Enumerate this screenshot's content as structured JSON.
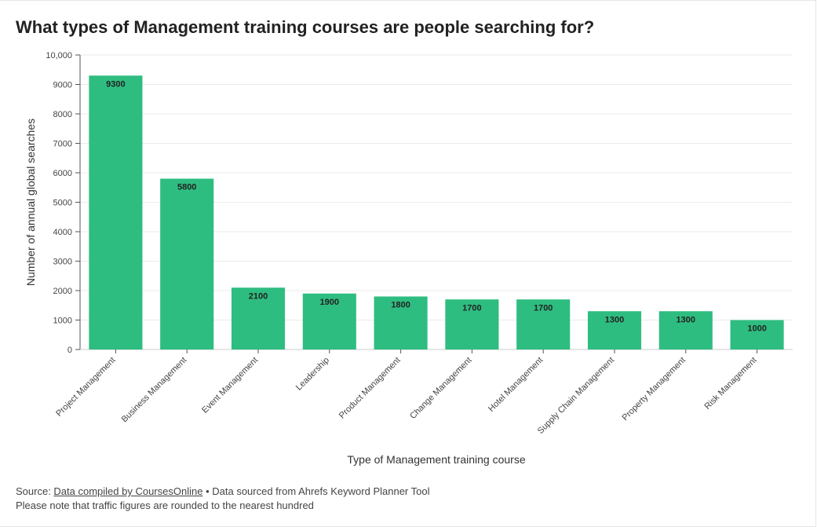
{
  "title": "What types of Management training courses are people searching for?",
  "chart_data": {
    "type": "bar",
    "categories": [
      "Project Management",
      "Business Management",
      "Event Management",
      "Leadership",
      "Product Management",
      "Change Management",
      "Hotel Management",
      "Supply Chain Management",
      "Property Management",
      "Risk Management"
    ],
    "values": [
      9300,
      5800,
      2100,
      1900,
      1800,
      1700,
      1700,
      1300,
      1300,
      1000
    ],
    "data_labels": [
      "9300",
      "5800",
      "2100",
      "1900",
      "1800",
      "1700",
      "1700",
      "1300",
      "1300",
      "1000"
    ],
    "xlabel": "Type of Management training course",
    "ylabel": "Number of annual global searches",
    "ylim": [
      0,
      10000
    ],
    "yticks": [
      0,
      1000,
      2000,
      3000,
      4000,
      5000,
      6000,
      7000,
      8000,
      9000,
      10000
    ],
    "ytick_labels": [
      "0",
      "1000",
      "2000",
      "3000",
      "4000",
      "5000",
      "6000",
      "7000",
      "8000",
      "9000",
      "10,000"
    ],
    "grid": true,
    "bar_color": "#2ebd80"
  },
  "footer": {
    "source_prefix": "Source: ",
    "source_link": "Data compiled by CoursesOnline",
    "source_suffix": " • Data sourced from Ahrefs Keyword Planner Tool",
    "note": "Please note that traffic figures are rounded to the nearest hundred"
  }
}
